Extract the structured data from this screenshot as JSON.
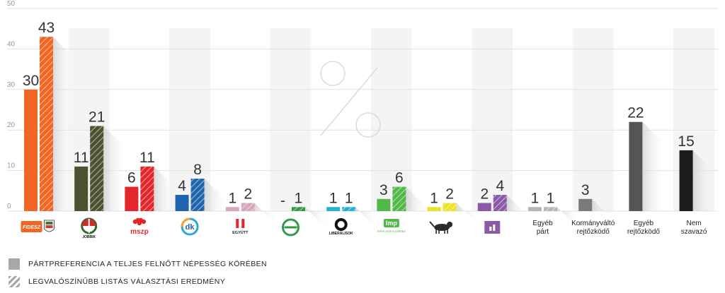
{
  "chart_data": {
    "type": "bar",
    "ylim": [
      0,
      50
    ],
    "yticks": [
      0,
      10,
      20,
      30,
      40,
      50
    ],
    "grid": true,
    "categories": [
      {
        "logo": "Fidesz-KDNP",
        "color": "#f26522",
        "pref": 30,
        "pref_label": "30",
        "result": 43,
        "result_label": "43"
      },
      {
        "logo": "Jobbik",
        "color": "#4a5230",
        "pref": 11,
        "pref_label": "11",
        "result": 21,
        "result_label": "21"
      },
      {
        "logo": "MSZP",
        "color": "#e3262b",
        "pref": 6,
        "pref_label": "6",
        "result": 11,
        "result_label": "11"
      },
      {
        "logo": "DK",
        "color": "#1f64ad",
        "pref": 4,
        "pref_label": "4",
        "result": 8,
        "result_label": "8"
      },
      {
        "logo": "Együtt",
        "color": "#d8a5bd",
        "pref": 1,
        "pref_label": "1",
        "result": 2,
        "result_label": "2"
      },
      {
        "logo": "Momentum",
        "color": "#2e9a4a",
        "pref": null,
        "pref_label": "-",
        "result": 1,
        "result_label": "1"
      },
      {
        "logo": "Liberálisok",
        "color": "#22b0d6",
        "pref": 1,
        "pref_label": "1",
        "result": 1,
        "result_label": "1"
      },
      {
        "logo": "LMP",
        "color": "#53b84a",
        "pref": 3,
        "pref_label": "3",
        "result": 6,
        "result_label": "6"
      },
      {
        "logo": "MKKP",
        "color": "#ece324",
        "pref": 1,
        "pref_label": "1",
        "result": 2,
        "result_label": "2"
      },
      {
        "logo": "Párbeszéd",
        "color": "#8a5aa8",
        "pref": 2,
        "pref_label": "2",
        "result": 4,
        "result_label": "4"
      },
      {
        "label": [
          "Egyéb",
          "párt"
        ],
        "color": "#b5b5b5",
        "pref": 1,
        "pref_label": "1",
        "result": 1,
        "result_label": "1"
      },
      {
        "label": [
          "Kormányváltó",
          "rejtőzködő"
        ],
        "color": "#7a7a7a",
        "pref": 3,
        "pref_label": "3",
        "result": null,
        "result_label": ""
      },
      {
        "label": [
          "Egyéb",
          "rejtőzködő"
        ],
        "color": "#555555",
        "pref": 22,
        "pref_label": "22",
        "result": null,
        "result_label": ""
      },
      {
        "label": [
          "Nem",
          "szavazó"
        ],
        "color": "#1c1c1c",
        "pref": 15,
        "pref_label": "15",
        "result": null,
        "result_label": ""
      }
    ],
    "legend": [
      {
        "label": "PÁRTPREFERENCIA A TELJES FELNŐTT NÉPESSÉG KÖRÉBEN",
        "style": "solid"
      },
      {
        "label": "LEGVALÓSZÍNŰBB LISTÁS VÁLASZTÁSI EREDMÉNY",
        "style": "hatched"
      }
    ],
    "logo_texts": {
      "fidesz": "FIDESZ",
      "jobbik": "JOBBIK",
      "mszp": "mszp",
      "dk": "dk",
      "egyutt": "EGYÜTT",
      "liberalisok": "LIBERÁLISOK",
      "lmp": "lmp",
      "lmp_tagline": "lehet más a politika"
    }
  }
}
